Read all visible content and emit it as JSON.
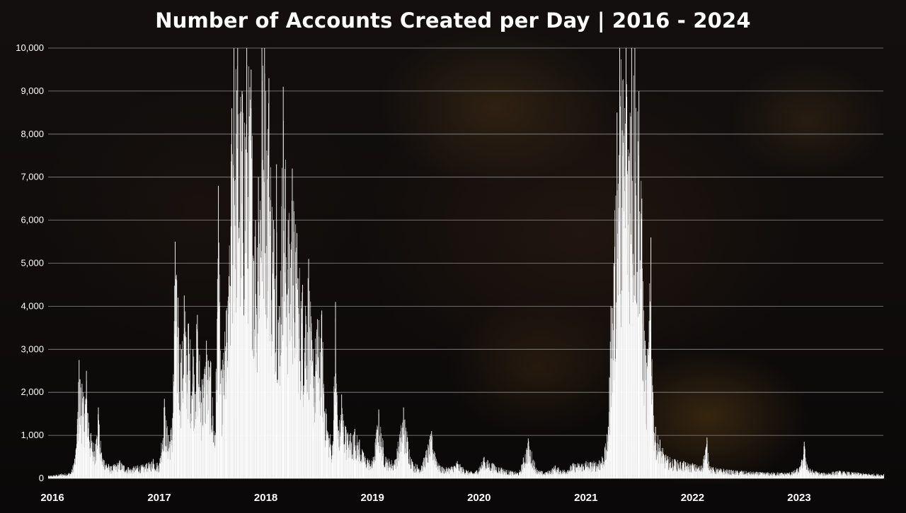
{
  "chart_data": {
    "type": "bar",
    "title": "Number of Accounts Created per Day | 2016 - 2024",
    "xlabel": "",
    "ylabel": "",
    "ylim": [
      0,
      10000
    ],
    "y_ticks": [
      0,
      1000,
      2000,
      3000,
      4000,
      5000,
      6000,
      7000,
      8000,
      9000,
      10000
    ],
    "y_tick_labels": [
      "0",
      "1,000",
      "2,000",
      "3,000",
      "4,000",
      "5,000",
      "6,000",
      "7,000",
      "8,000",
      "9,000",
      "10,000"
    ],
    "x_tick_labels": [
      "2016",
      "2017",
      "2018",
      "2019",
      "2020",
      "2021",
      "2022",
      "2023"
    ],
    "grid": "horizontal",
    "legend": "none",
    "bar_color": "#ffffff",
    "grid_color": "#8a8a8a",
    "x_range": [
      "2016-01-01",
      "2023-10-31"
    ],
    "series": [
      {
        "values_type": "date-value keypoints (approximate, read from chart)",
        "points": [
          [
            "2016-01-01",
            60
          ],
          [
            "2016-02-15",
            110
          ],
          [
            "2016-03-20",
            150
          ],
          [
            "2016-04-05",
            700
          ],
          [
            "2016-04-15",
            2750
          ],
          [
            "2016-04-25",
            2200
          ],
          [
            "2016-05-01",
            1900
          ],
          [
            "2016-05-10",
            2500
          ],
          [
            "2016-05-25",
            1050
          ],
          [
            "2016-06-10",
            800
          ],
          [
            "2016-06-20",
            1650
          ],
          [
            "2016-07-01",
            600
          ],
          [
            "2016-08-01",
            280
          ],
          [
            "2016-09-01",
            420
          ],
          [
            "2016-10-01",
            260
          ],
          [
            "2016-11-01",
            300
          ],
          [
            "2016-12-01",
            340
          ],
          [
            "2016-12-25",
            450
          ],
          [
            "2017-01-15",
            350
          ],
          [
            "2017-02-01",
            1850
          ],
          [
            "2017-02-15",
            1000
          ],
          [
            "2017-03-01",
            1400
          ],
          [
            "2017-03-10",
            5500
          ],
          [
            "2017-03-20",
            4200
          ],
          [
            "2017-04-01",
            3000
          ],
          [
            "2017-04-10",
            4250
          ],
          [
            "2017-04-25",
            3600
          ],
          [
            "2017-05-10",
            3000
          ],
          [
            "2017-05-25",
            3800
          ],
          [
            "2017-06-10",
            2300
          ],
          [
            "2017-06-25",
            3200
          ],
          [
            "2017-07-10",
            2700
          ],
          [
            "2017-07-25",
            1000
          ],
          [
            "2017-08-05",
            6800
          ],
          [
            "2017-08-15",
            2500
          ],
          [
            "2017-09-01",
            3900
          ],
          [
            "2017-09-10",
            4700
          ],
          [
            "2017-09-20",
            8600
          ],
          [
            "2017-09-27",
            10000
          ],
          [
            "2017-10-10",
            10000
          ],
          [
            "2017-10-25",
            9000
          ],
          [
            "2017-11-10",
            10000
          ],
          [
            "2017-11-25",
            9500
          ],
          [
            "2017-12-10",
            6000
          ],
          [
            "2017-12-20",
            7000
          ],
          [
            "2018-01-01",
            10000
          ],
          [
            "2018-01-10",
            10000
          ],
          [
            "2018-01-25",
            9300
          ],
          [
            "2018-02-10",
            6000
          ],
          [
            "2018-02-20",
            7300
          ],
          [
            "2018-03-01",
            4000
          ],
          [
            "2018-03-15",
            9100
          ],
          [
            "2018-04-01",
            6000
          ],
          [
            "2018-04-15",
            7200
          ],
          [
            "2018-05-01",
            5700
          ],
          [
            "2018-05-20",
            4500
          ],
          [
            "2018-06-10",
            5100
          ],
          [
            "2018-06-25",
            3000
          ],
          [
            "2018-07-10",
            3700
          ],
          [
            "2018-07-25",
            3900
          ],
          [
            "2018-08-10",
            1500
          ],
          [
            "2018-09-01",
            800
          ],
          [
            "2018-09-10",
            4100
          ],
          [
            "2018-09-20",
            1100
          ],
          [
            "2018-10-01",
            1950
          ],
          [
            "2018-10-15",
            1200
          ],
          [
            "2018-11-01",
            1050
          ],
          [
            "2018-11-15",
            1150
          ],
          [
            "2018-12-01",
            900
          ],
          [
            "2018-12-15",
            600
          ],
          [
            "2019-01-15",
            400
          ],
          [
            "2019-02-05",
            1600
          ],
          [
            "2019-03-01",
            500
          ],
          [
            "2019-04-01",
            420
          ],
          [
            "2019-05-01",
            1650
          ],
          [
            "2019-06-01",
            380
          ],
          [
            "2019-07-01",
            300
          ],
          [
            "2019-08-05",
            1100
          ],
          [
            "2019-09-01",
            300
          ],
          [
            "2019-10-01",
            250
          ],
          [
            "2019-11-01",
            400
          ],
          [
            "2019-12-01",
            200
          ],
          [
            "2020-01-01",
            150
          ],
          [
            "2020-02-01",
            500
          ],
          [
            "2020-03-01",
            360
          ],
          [
            "2020-04-01",
            250
          ],
          [
            "2020-05-01",
            180
          ],
          [
            "2020-06-01",
            150
          ],
          [
            "2020-07-01",
            930
          ],
          [
            "2020-08-01",
            200
          ],
          [
            "2020-09-01",
            150
          ],
          [
            "2020-10-01",
            300
          ],
          [
            "2020-11-01",
            200
          ],
          [
            "2020-12-01",
            350
          ],
          [
            "2021-01-15",
            400
          ],
          [
            "2021-03-01",
            420
          ],
          [
            "2021-03-20",
            700
          ],
          [
            "2021-04-01",
            1200
          ],
          [
            "2021-04-10",
            4000
          ],
          [
            "2021-04-20",
            5000
          ],
          [
            "2021-05-01",
            8500
          ],
          [
            "2021-05-10",
            10000
          ],
          [
            "2021-06-01",
            10000
          ],
          [
            "2021-06-20",
            10000
          ],
          [
            "2021-07-01",
            10000
          ],
          [
            "2021-07-15",
            9000
          ],
          [
            "2021-07-25",
            6500
          ],
          [
            "2021-08-05",
            3200
          ],
          [
            "2021-08-15",
            3000
          ],
          [
            "2021-08-25",
            5600
          ],
          [
            "2021-09-01",
            2000
          ],
          [
            "2021-09-10",
            1200
          ],
          [
            "2021-09-25",
            900
          ],
          [
            "2021-10-15",
            550
          ],
          [
            "2021-11-15",
            450
          ],
          [
            "2021-12-15",
            400
          ],
          [
            "2022-01-15",
            350
          ],
          [
            "2022-02-15",
            300
          ],
          [
            "2022-03-05",
            950
          ],
          [
            "2022-03-15",
            280
          ],
          [
            "2022-05-01",
            220
          ],
          [
            "2022-07-01",
            180
          ],
          [
            "2022-09-01",
            150
          ],
          [
            "2022-11-01",
            140
          ],
          [
            "2022-12-20",
            150
          ],
          [
            "2023-01-20",
            300
          ],
          [
            "2023-02-01",
            850
          ],
          [
            "2023-02-15",
            250
          ],
          [
            "2023-04-01",
            130
          ],
          [
            "2023-06-01",
            180
          ],
          [
            "2023-08-01",
            140
          ],
          [
            "2023-10-31",
            100
          ]
        ]
      }
    ]
  }
}
